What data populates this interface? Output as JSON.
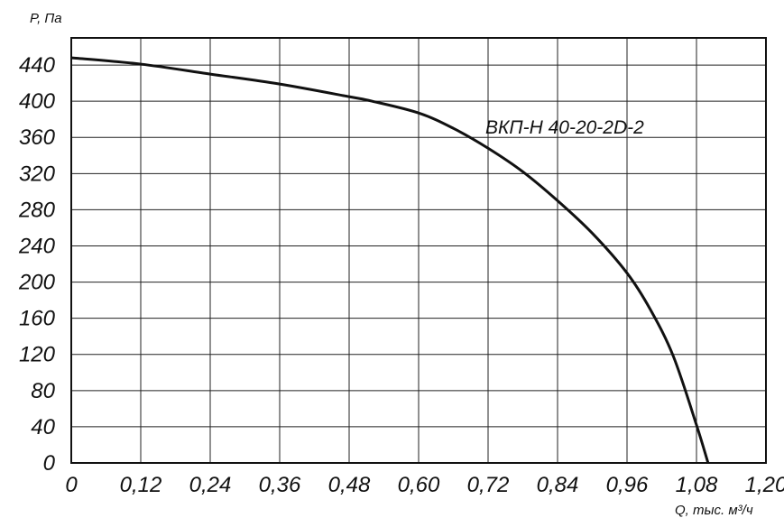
{
  "chart_data": {
    "type": "line",
    "title": "",
    "xlabel": "Q, тыс. м³/ч",
    "ylabel": "P, Па",
    "xlim": [
      0,
      1.2
    ],
    "ylim": [
      0,
      470
    ],
    "grid": true,
    "x_ticks": [
      0,
      0.12,
      0.24,
      0.36,
      0.48,
      0.6,
      0.72,
      0.84,
      0.96,
      1.08,
      1.2
    ],
    "x_tick_labels": [
      "0",
      "0,12",
      "0,24",
      "0,36",
      "0,48",
      "0,60",
      "0,72",
      "0,84",
      "0,96",
      "1,08",
      "1,20"
    ],
    "y_ticks": [
      0,
      40,
      80,
      120,
      160,
      200,
      240,
      280,
      320,
      360,
      400,
      440
    ],
    "y_tick_labels": [
      "0",
      "40",
      "80",
      "120",
      "160",
      "200",
      "240",
      "280",
      "320",
      "360",
      "400",
      "440"
    ],
    "series": [
      {
        "name": "ВКП-Н 40-20-2D-2",
        "x": [
          0,
          0.12,
          0.24,
          0.36,
          0.48,
          0.52,
          0.6,
          0.66,
          0.72,
          0.78,
          0.84,
          0.9,
          0.96,
          1.0,
          1.04,
          1.08,
          1.1
        ],
        "y": [
          448,
          441,
          430,
          419,
          405,
          400,
          387,
          370,
          348,
          322,
          290,
          254,
          210,
          170,
          118,
          42,
          0
        ]
      }
    ]
  }
}
